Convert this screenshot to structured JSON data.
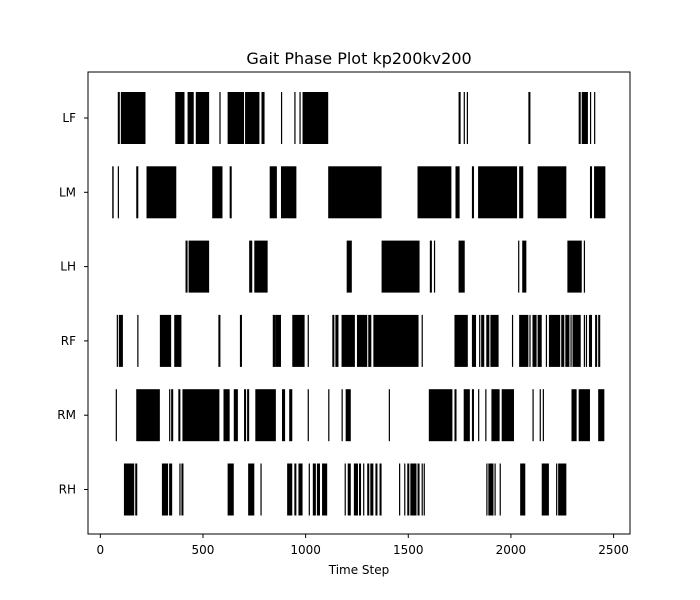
{
  "chart_data": {
    "type": "gait-phase",
    "title": "Gait Phase Plot kp200kv200",
    "xlabel": "Time Step",
    "ylabel": "",
    "xlim": [
      -60,
      2580
    ],
    "xticks": [
      0,
      500,
      1000,
      1500,
      2000,
      2500
    ],
    "grid": false,
    "color": "#000000",
    "series": [
      {
        "name": "LF",
        "segments": [
          [
            85,
            95
          ],
          [
            100,
            220
          ],
          [
            365,
            410
          ],
          [
            425,
            455
          ],
          [
            465,
            530
          ],
          [
            580,
            585
          ],
          [
            620,
            700
          ],
          [
            705,
            775
          ],
          [
            785,
            800
          ],
          [
            880,
            885
          ],
          [
            945,
            950
          ],
          [
            970,
            975
          ],
          [
            985,
            1110
          ],
          [
            1745,
            1755
          ],
          [
            1770,
            1775
          ],
          [
            1785,
            1790
          ],
          [
            2085,
            2095
          ],
          [
            2330,
            2340
          ],
          [
            2345,
            2375
          ],
          [
            2385,
            2390
          ],
          [
            2405,
            2410
          ]
        ]
      },
      {
        "name": "LM",
        "segments": [
          [
            58,
            65
          ],
          [
            85,
            90
          ],
          [
            175,
            185
          ],
          [
            225,
            370
          ],
          [
            545,
            595
          ],
          [
            630,
            640
          ],
          [
            825,
            860
          ],
          [
            880,
            955
          ],
          [
            1110,
            1370
          ],
          [
            1545,
            1710
          ],
          [
            1730,
            1750
          ],
          [
            1810,
            1820
          ],
          [
            1840,
            2030
          ],
          [
            2040,
            2060
          ],
          [
            2130,
            2270
          ],
          [
            2385,
            2395
          ],
          [
            2405,
            2460
          ]
        ]
      },
      {
        "name": "LH",
        "segments": [
          [
            415,
            425
          ],
          [
            430,
            530
          ],
          [
            725,
            740
          ],
          [
            750,
            815
          ],
          [
            1200,
            1225
          ],
          [
            1370,
            1555
          ],
          [
            1605,
            1615
          ],
          [
            1625,
            1630
          ],
          [
            1745,
            1775
          ],
          [
            2035,
            2040
          ],
          [
            2055,
            2075
          ],
          [
            2275,
            2345
          ],
          [
            2355,
            2360
          ]
        ]
      },
      {
        "name": "RF",
        "segments": [
          [
            80,
            85
          ],
          [
            90,
            110
          ],
          [
            180,
            185
          ],
          [
            290,
            345
          ],
          [
            360,
            395
          ],
          [
            575,
            585
          ],
          [
            680,
            690
          ],
          [
            840,
            855
          ],
          [
            855,
            880
          ],
          [
            935,
            995
          ],
          [
            1010,
            1015
          ],
          [
            1130,
            1140
          ],
          [
            1145,
            1160
          ],
          [
            1175,
            1240
          ],
          [
            1250,
            1300
          ],
          [
            1305,
            1320
          ],
          [
            1330,
            1550
          ],
          [
            1565,
            1570
          ],
          [
            1725,
            1790
          ],
          [
            1810,
            1830
          ],
          [
            1845,
            1850
          ],
          [
            1855,
            1870
          ],
          [
            1880,
            1895
          ],
          [
            1900,
            1940
          ],
          [
            2005,
            2010
          ],
          [
            2040,
            2085
          ],
          [
            2090,
            2095
          ],
          [
            2105,
            2125
          ],
          [
            2130,
            2150
          ],
          [
            2170,
            2175
          ],
          [
            2185,
            2240
          ],
          [
            2245,
            2260
          ],
          [
            2265,
            2285
          ],
          [
            2290,
            2295
          ],
          [
            2300,
            2340
          ],
          [
            2355,
            2360
          ],
          [
            2365,
            2370
          ],
          [
            2380,
            2395
          ],
          [
            2410,
            2420
          ],
          [
            2425,
            2435
          ]
        ]
      },
      {
        "name": "RM",
        "segments": [
          [
            75,
            80
          ],
          [
            175,
            290
          ],
          [
            335,
            340
          ],
          [
            345,
            355
          ],
          [
            380,
            390
          ],
          [
            400,
            580
          ],
          [
            600,
            630
          ],
          [
            650,
            670
          ],
          [
            700,
            710
          ],
          [
            715,
            725
          ],
          [
            755,
            855
          ],
          [
            885,
            900
          ],
          [
            920,
            935
          ],
          [
            1010,
            1015
          ],
          [
            1110,
            1115
          ],
          [
            1175,
            1180
          ],
          [
            1195,
            1220
          ],
          [
            1405,
            1410
          ],
          [
            1600,
            1715
          ],
          [
            1725,
            1735
          ],
          [
            1770,
            1800
          ],
          [
            1810,
            1820
          ],
          [
            1840,
            1845
          ],
          [
            1875,
            1880
          ],
          [
            1905,
            1945
          ],
          [
            1955,
            2015
          ],
          [
            2105,
            2110
          ],
          [
            2140,
            2145
          ],
          [
            2155,
            2160
          ],
          [
            2295,
            2320
          ],
          [
            2330,
            2385
          ],
          [
            2425,
            2455
          ]
        ]
      },
      {
        "name": "RH",
        "segments": [
          [
            115,
            165
          ],
          [
            170,
            180
          ],
          [
            300,
            330
          ],
          [
            335,
            350
          ],
          [
            385,
            390
          ],
          [
            395,
            405
          ],
          [
            620,
            650
          ],
          [
            720,
            750
          ],
          [
            780,
            785
          ],
          [
            910,
            935
          ],
          [
            945,
            955
          ],
          [
            965,
            985
          ],
          [
            1015,
            1020
          ],
          [
            1035,
            1050
          ],
          [
            1055,
            1070
          ],
          [
            1080,
            1105
          ],
          [
            1190,
            1195
          ],
          [
            1205,
            1220
          ],
          [
            1235,
            1255
          ],
          [
            1260,
            1270
          ],
          [
            1280,
            1285
          ],
          [
            1300,
            1310
          ],
          [
            1315,
            1330
          ],
          [
            1340,
            1350
          ],
          [
            1360,
            1370
          ],
          [
            1455,
            1460
          ],
          [
            1480,
            1485
          ],
          [
            1495,
            1505
          ],
          [
            1510,
            1540
          ],
          [
            1545,
            1555
          ],
          [
            1565,
            1570
          ],
          [
            1575,
            1580
          ],
          [
            1880,
            1885
          ],
          [
            1890,
            1915
          ],
          [
            1920,
            1925
          ],
          [
            1945,
            1950
          ],
          [
            2045,
            2070
          ],
          [
            2150,
            2185
          ],
          [
            2220,
            2225
          ],
          [
            2230,
            2270
          ]
        ]
      }
    ]
  }
}
